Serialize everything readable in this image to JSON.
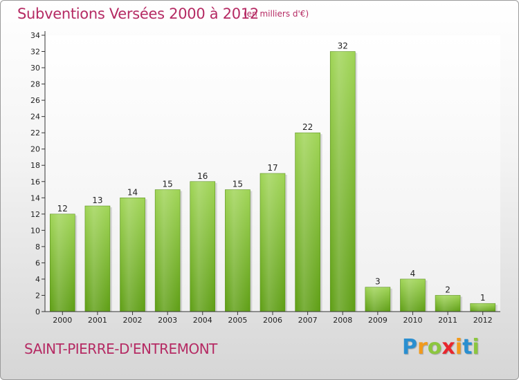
{
  "chart_data": {
    "type": "bar",
    "title": "Subventions Versées 2000 à 2012",
    "unit": "(en milliers d'€)",
    "categories": [
      "2000",
      "2001",
      "2002",
      "2003",
      "2004",
      "2005",
      "2006",
      "2007",
      "2008",
      "2009",
      "2010",
      "2011",
      "2012"
    ],
    "values": [
      12,
      13,
      14,
      15,
      16,
      15,
      17,
      22,
      32,
      3,
      4,
      2,
      1
    ],
    "xlabel": "",
    "ylabel": "",
    "ylim": [
      0,
      34
    ],
    "yticks": [
      0,
      2,
      4,
      6,
      8,
      10,
      12,
      14,
      16,
      18,
      20,
      22,
      24,
      26,
      28,
      30,
      32,
      34
    ],
    "grid": false,
    "bar_color": "#7bbf2e"
  },
  "footer": {
    "commune": "SAINT-PIERRE-D'ENTREMONT",
    "brand_letters": [
      "P",
      "r",
      "o",
      "x",
      "i",
      "t",
      "i"
    ],
    "brand_colors": [
      "#2a8fd0",
      "#f29a1c",
      "#8cc63f",
      "#e8262d",
      "#f29a1c",
      "#2a8fd0",
      "#8cc63f"
    ]
  }
}
